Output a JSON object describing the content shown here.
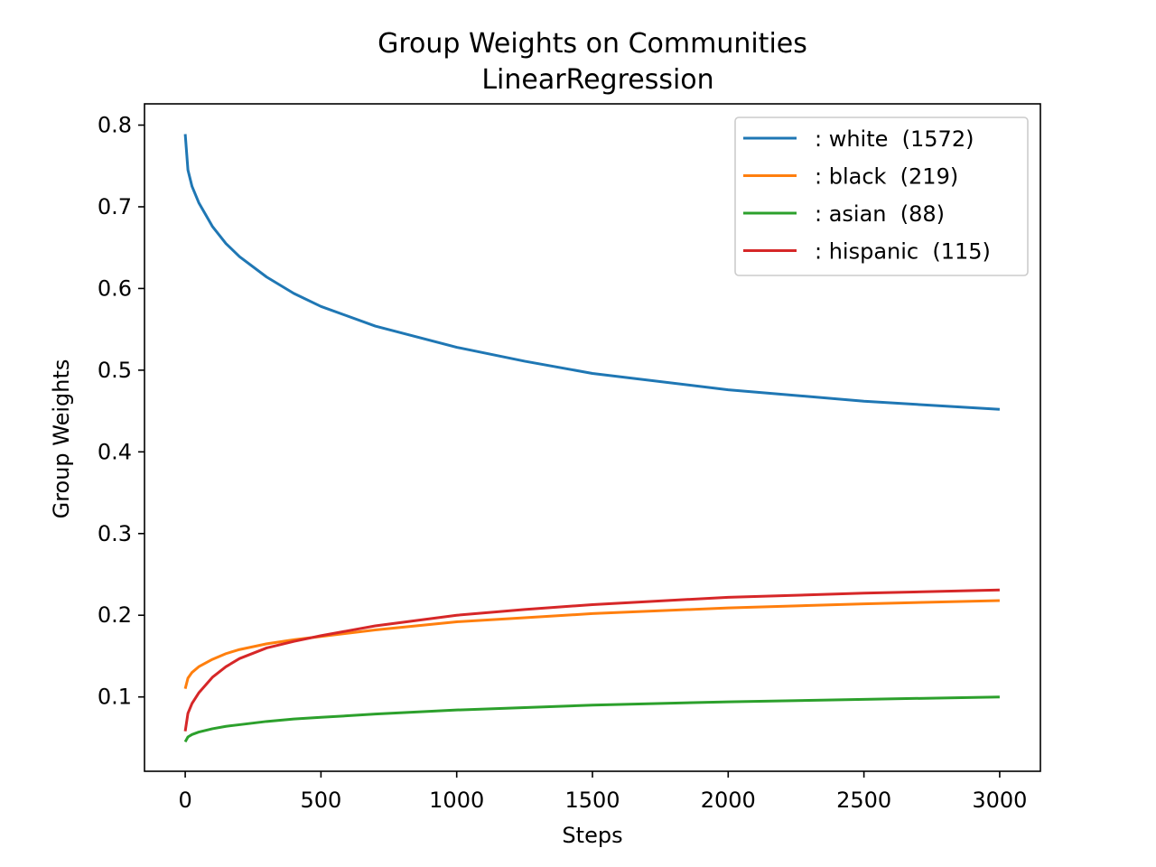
{
  "chart_data": {
    "type": "line",
    "title": "Group Weights on Communities",
    "subtitle": "LinearRegression",
    "xlabel": "Steps",
    "ylabel": "Group Weights",
    "xlim": [
      -150,
      3150
    ],
    "ylim": [
      0.009,
      0.826
    ],
    "xticks": [
      0,
      500,
      1000,
      1500,
      2000,
      2500,
      3000
    ],
    "xtick_labels": [
      "0",
      "500",
      "1000",
      "1500",
      "2000",
      "2500",
      "3000"
    ],
    "yticks": [
      0.1,
      0.2,
      0.3,
      0.4,
      0.5,
      0.6,
      0.7,
      0.8
    ],
    "ytick_labels": [
      "0.1",
      "0.2",
      "0.3",
      "0.4",
      "0.5",
      "0.6",
      "0.7",
      "0.8"
    ],
    "grid": false,
    "legend_position": "top-right",
    "x": [
      0,
      10,
      25,
      50,
      100,
      150,
      200,
      300,
      400,
      500,
      700,
      1000,
      1250,
      1500,
      2000,
      2500,
      3000
    ],
    "series": [
      {
        "name": ": white  (1572)",
        "color": "#1f77b4",
        "values": [
          0.789,
          0.745,
          0.725,
          0.705,
          0.676,
          0.655,
          0.639,
          0.614,
          0.594,
          0.578,
          0.554,
          0.528,
          0.511,
          0.496,
          0.476,
          0.462,
          0.452
        ]
      },
      {
        "name": ": black  (219)",
        "color": "#ff7f0e",
        "values": [
          0.11,
          0.123,
          0.13,
          0.137,
          0.146,
          0.153,
          0.158,
          0.165,
          0.17,
          0.174,
          0.182,
          0.192,
          0.197,
          0.202,
          0.209,
          0.214,
          0.218
        ]
      },
      {
        "name": ": asian  (88)",
        "color": "#2ca02c",
        "values": [
          0.045,
          0.051,
          0.054,
          0.057,
          0.061,
          0.064,
          0.066,
          0.07,
          0.073,
          0.075,
          0.079,
          0.084,
          0.087,
          0.09,
          0.094,
          0.097,
          0.1
        ]
      },
      {
        "name": ": hispanic  (115)",
        "color": "#d62728",
        "values": [
          0.058,
          0.08,
          0.092,
          0.105,
          0.124,
          0.137,
          0.147,
          0.16,
          0.168,
          0.175,
          0.187,
          0.2,
          0.207,
          0.213,
          0.222,
          0.227,
          0.231
        ]
      }
    ]
  }
}
